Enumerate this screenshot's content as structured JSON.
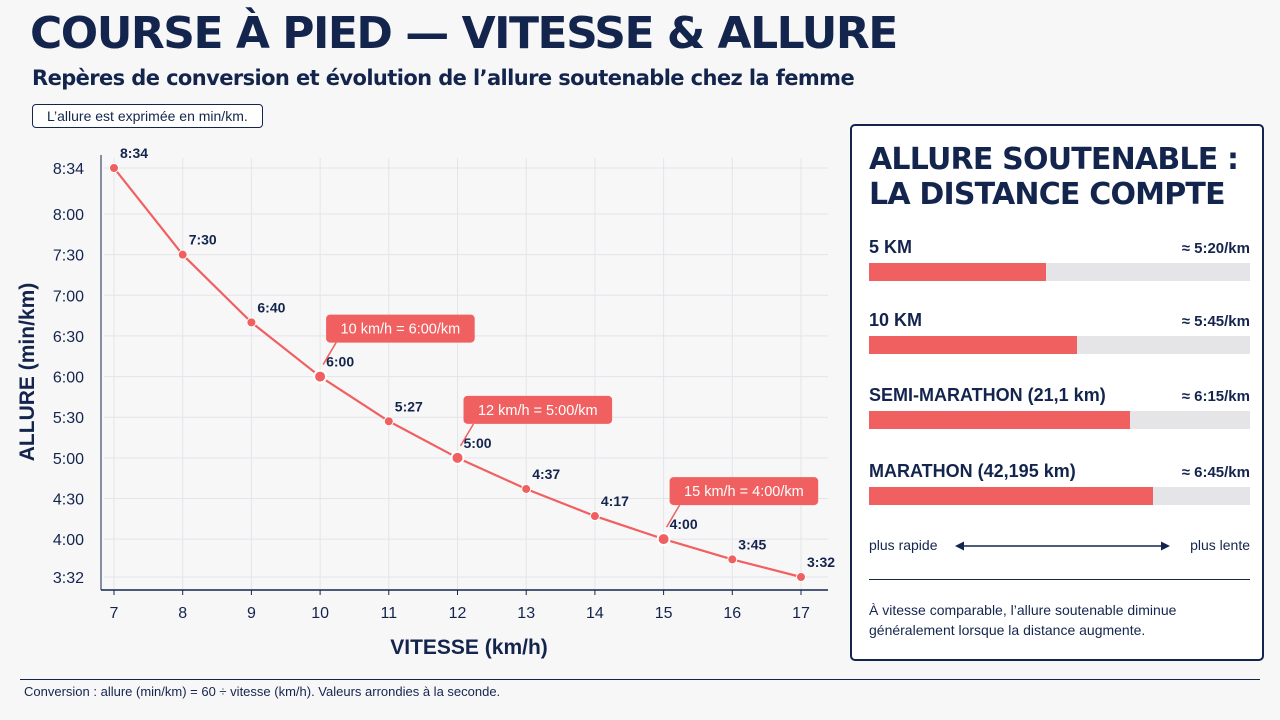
{
  "header": {
    "title": "COURSE À PIED — VITESSE & ALLURE",
    "subtitle": "Repères de conversion et évolution de l’allure soutenable chez la femme",
    "note": "L’allure est exprimée en min/km."
  },
  "chart_data": {
    "type": "line",
    "xlabel": "VITESSE (km/h)",
    "ylabel": "ALLURE (min/km)",
    "x": [
      7,
      8,
      9,
      10,
      11,
      12,
      13,
      14,
      15,
      16,
      17
    ],
    "series": [
      {
        "values": [
          "8:34",
          "7:30",
          "6:40",
          "6:00",
          "5:27",
          "5:00",
          "4:37",
          "4:17",
          "4:00",
          "3:45",
          "3:32"
        ],
        "color": "#f06060"
      }
    ],
    "xlim": [
      7,
      17
    ],
    "ylim": [
      "3:32",
      "8:34"
    ],
    "x_ticks": [
      "7",
      "8",
      "9",
      "10",
      "11",
      "12",
      "13",
      "14",
      "15",
      "16",
      "17"
    ],
    "y_ticks": [
      "3:32",
      "4:00",
      "4:30",
      "5:00",
      "5:30",
      "6:00",
      "6:30",
      "7:00",
      "7:30",
      "8:00",
      "8:34"
    ],
    "grid": true,
    "highlighted_points": [
      10,
      12,
      15
    ],
    "annotations": [
      {
        "x": 10,
        "text": "10 km/h = 6:00/km"
      },
      {
        "x": 12,
        "text": "12 km/h = 5:00/km"
      },
      {
        "x": 15,
        "text": "15 km/h = 4:00/km"
      }
    ]
  },
  "panel": {
    "title_line1": "ALLURE SOUTENABLE :",
    "title_line2": "LA DISTANCE COMPTE",
    "bars": [
      {
        "name": "5 KM",
        "pace": "≈ 5:20/km",
        "fill_fraction": 0.465
      },
      {
        "name": "10 KM",
        "pace": "≈ 5:45/km",
        "fill_fraction": 0.545
      },
      {
        "name": "SEMI-MARATHON (21,1 km)",
        "pace": "≈ 6:15/km",
        "fill_fraction": 0.685
      },
      {
        "name": "MARATHON (42,195 km)",
        "pace": "≈ 6:45/km",
        "fill_fraction": 0.745
      }
    ],
    "scale_fast": "plus rapide",
    "scale_slow": "plus lente",
    "text": "À vitesse comparable, l’allure soutenable diminue généralement lorsque la distance augmente."
  },
  "footer": "Conversion : allure (min/km) = 60 ÷ vitesse (km/h). Valeurs arrondies à la seconde.",
  "colors": {
    "navy": "#14254d",
    "accent": "#f06060",
    "grid": "#e4e4ea",
    "track": "#e5e5e8"
  }
}
